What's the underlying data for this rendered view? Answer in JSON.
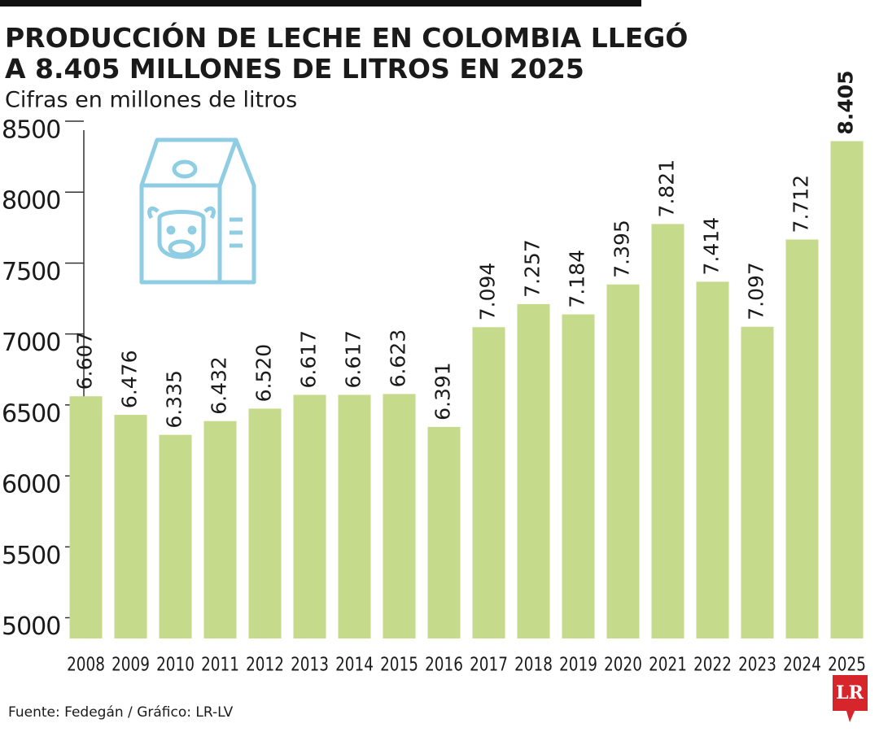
{
  "chart_data": {
    "type": "bar",
    "title": "PRODUCCIÓN DE LECHE EN COLOMBIA LLEGÓ A 8.405 MILLONES DE LITROS EN 2025",
    "subtitle": "Cifras en millones de litros",
    "categories": [
      "2008",
      "2009",
      "2010",
      "2011",
      "2012",
      "2013",
      "2014",
      "2015",
      "2016",
      "2017",
      "2018",
      "2019",
      "2020",
      "2021",
      "2022",
      "2023",
      "2024",
      "2025"
    ],
    "values": [
      6607,
      6476,
      6335,
      6432,
      6520,
      6617,
      6617,
      6623,
      6391,
      7094,
      7257,
      7184,
      7395,
      7821,
      7414,
      7097,
      7712,
      8405
    ],
    "value_labels": [
      "6.607",
      "6.476",
      "6.335",
      "6.432",
      "6.520",
      "6.617",
      "6.617",
      "6.623",
      "6.391",
      "7.094",
      "7.257",
      "7.184",
      "7.395",
      "7.821",
      "7.414",
      "7.097",
      "7.712",
      "8.405"
    ],
    "color": "#c5da8a",
    "ylim": [
      4900,
      8500
    ],
    "yticks": [
      5000,
      5500,
      6000,
      6500,
      7000,
      7500,
      8000,
      8500
    ],
    "source": "Fuente: Fedegán / Gráfico: LR-LV",
    "logo": "LR"
  }
}
